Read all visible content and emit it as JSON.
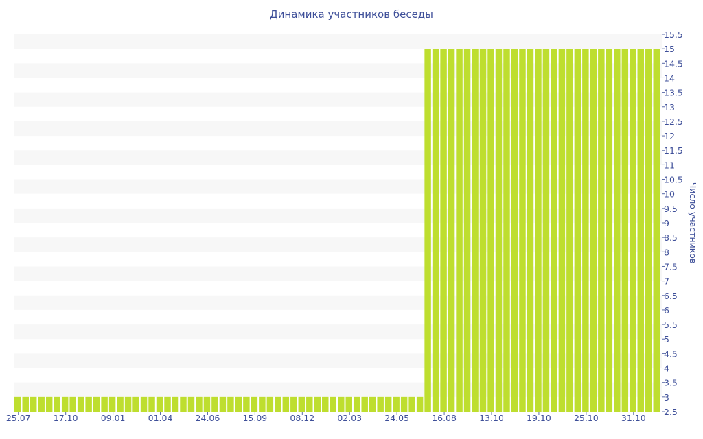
{
  "chart_data": {
    "type": "bar",
    "title": "Динамика участников беседы",
    "xlabel": "",
    "ylabel": "Число участников",
    "ylim": [
      2.5,
      15.5
    ],
    "ytick_step": 0.5,
    "y_axis_position": "right",
    "grid": "alternating horizontal bands",
    "x_tick_labels": [
      "25.07",
      "17.10",
      "09.01",
      "01.04",
      "24.06",
      "15.09",
      "08.12",
      "02.03",
      "24.05",
      "16.08",
      "13.10",
      "19.10",
      "25.10",
      "31.10"
    ],
    "x_tick_every_n_bars": 6,
    "values": [
      3,
      3,
      3,
      3,
      3,
      3,
      3,
      3,
      3,
      3,
      3,
      3,
      3,
      3,
      3,
      3,
      3,
      3,
      3,
      3,
      3,
      3,
      3,
      3,
      3,
      3,
      3,
      3,
      3,
      3,
      3,
      3,
      3,
      3,
      3,
      3,
      3,
      3,
      3,
      3,
      3,
      3,
      3,
      3,
      3,
      3,
      3,
      3,
      3,
      3,
      3,
      3,
      15,
      15,
      15,
      15,
      15,
      15,
      15,
      15,
      15,
      15,
      15,
      15,
      15,
      15,
      15,
      15,
      15,
      15,
      15,
      15,
      15,
      15,
      15,
      15,
      15,
      15,
      15,
      15,
      15,
      15
    ],
    "colors": {
      "bar": "#bede2f",
      "text": "#3e4f99",
      "axis": "#5a6aa8",
      "band": "#f7f7f7"
    }
  }
}
